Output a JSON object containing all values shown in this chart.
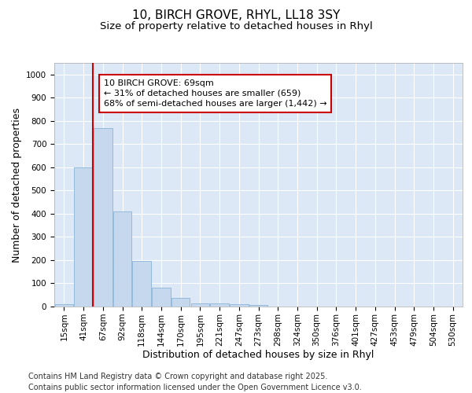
{
  "title_line1": "10, BIRCH GROVE, RHYL, LL18 3SY",
  "title_line2": "Size of property relative to detached houses in Rhyl",
  "xlabel": "Distribution of detached houses by size in Rhyl",
  "ylabel": "Number of detached properties",
  "categories": [
    "15sqm",
    "41sqm",
    "67sqm",
    "92sqm",
    "118sqm",
    "144sqm",
    "170sqm",
    "195sqm",
    "221sqm",
    "247sqm",
    "273sqm",
    "298sqm",
    "324sqm",
    "350sqm",
    "376sqm",
    "401sqm",
    "427sqm",
    "453sqm",
    "479sqm",
    "504sqm",
    "530sqm"
  ],
  "values": [
    10,
    600,
    770,
    410,
    195,
    80,
    38,
    15,
    15,
    10,
    6,
    0,
    0,
    0,
    0,
    0,
    0,
    0,
    0,
    0,
    0
  ],
  "bar_color": "#c5d8ee",
  "bar_edge_color": "#8ab4d8",
  "vline_color": "#cc0000",
  "annotation_text": "10 BIRCH GROVE: 69sqm\n← 31% of detached houses are smaller (659)\n68% of semi-detached houses are larger (1,442) →",
  "annotation_box_color": "#cc0000",
  "ylim": [
    0,
    1050
  ],
  "yticks": [
    0,
    100,
    200,
    300,
    400,
    500,
    600,
    700,
    800,
    900,
    1000
  ],
  "bg_color": "#dce8f5",
  "grid_color": "#ffffff",
  "footer_text": "Contains HM Land Registry data © Crown copyright and database right 2025.\nContains public sector information licensed under the Open Government Licence v3.0.",
  "title_fontsize": 11,
  "subtitle_fontsize": 9.5,
  "axis_label_fontsize": 9,
  "tick_fontsize": 7.5,
  "footer_fontsize": 7,
  "annot_fontsize": 8,
  "vline_x_index": 2
}
